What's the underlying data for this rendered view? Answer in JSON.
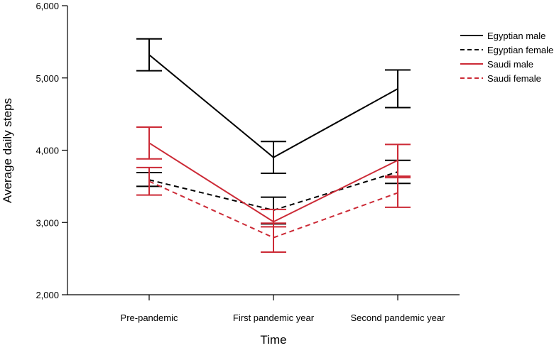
{
  "chart_data": {
    "type": "line",
    "categories": [
      "Pre-pandemic",
      "First pandemic year",
      "Second pandemic year"
    ],
    "xlabel": "Time",
    "ylabel": "Average daily steps",
    "ylim": [
      2000,
      6000
    ],
    "yticks": [
      2000,
      3000,
      4000,
      5000,
      6000
    ],
    "ytick_labels": [
      "2,000",
      "3,000",
      "4,000",
      "5,000",
      "6,000"
    ],
    "grid": false,
    "legend_position": "top-right",
    "series": [
      {
        "name": "Egyptian male",
        "color": "#000000",
        "dash": "solid",
        "values": [
          5320,
          3900,
          4850
        ],
        "err_low": [
          5100,
          3680,
          4590
        ],
        "err_high": [
          5540,
          4120,
          5110
        ]
      },
      {
        "name": "Egyptian female",
        "color": "#000000",
        "dash": "dashed",
        "values": [
          3590,
          3170,
          3700
        ],
        "err_low": [
          3500,
          2980,
          3540
        ],
        "err_high": [
          3690,
          3350,
          3860
        ]
      },
      {
        "name": "Saudi male",
        "color": "#cc2a36",
        "dash": "solid",
        "values": [
          4100,
          3010,
          3860
        ],
        "err_low": [
          3880,
          2940,
          3640
        ],
        "err_high": [
          4320,
          3180,
          4080
        ]
      },
      {
        "name": "Saudi female",
        "color": "#cc2a36",
        "dash": "dashed",
        "values": [
          3570,
          2790,
          3410
        ],
        "err_low": [
          3380,
          2590,
          3210
        ],
        "err_high": [
          3760,
          2990,
          3620
        ]
      }
    ]
  }
}
